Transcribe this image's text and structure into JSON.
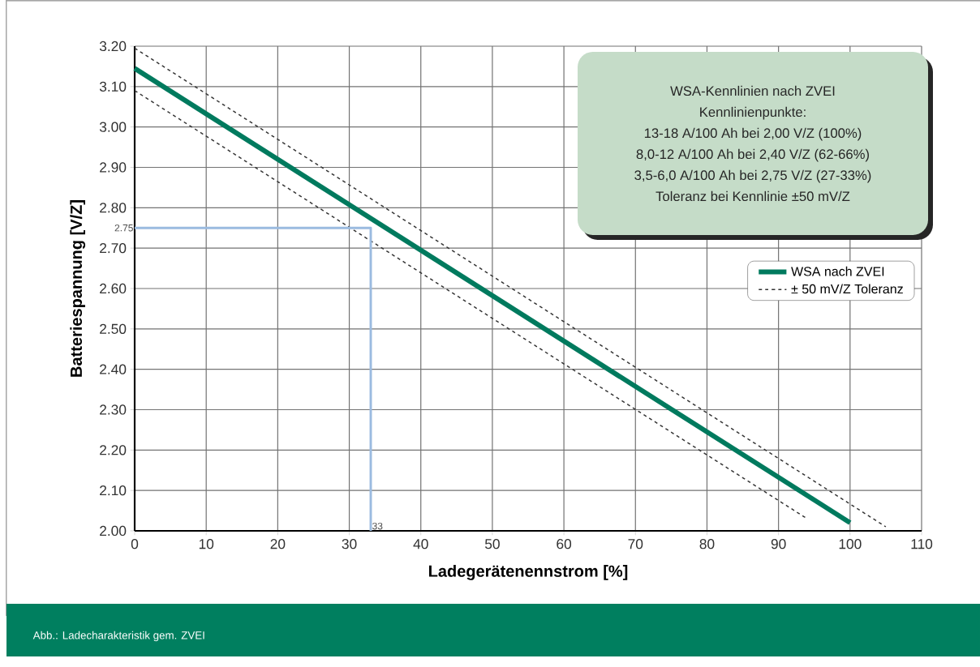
{
  "chart_data": {
    "type": "line",
    "xlabel": "Ladegerätenennstrom [%]",
    "ylabel": "Batteriespannung [V/Z]",
    "xlim": [
      0,
      110
    ],
    "ylim": [
      2.0,
      3.2
    ],
    "xticks": [
      0,
      10,
      20,
      30,
      40,
      50,
      60,
      70,
      80,
      90,
      100,
      110
    ],
    "yticks": [
      {
        "value": 2.0,
        "label": "2.00"
      },
      {
        "value": 2.1,
        "label": "2.10"
      },
      {
        "value": 2.2,
        "label": "2.20"
      },
      {
        "value": 2.3,
        "label": "2.30"
      },
      {
        "value": 2.4,
        "label": "2.40"
      },
      {
        "value": 2.5,
        "label": "2.50"
      },
      {
        "value": 2.6,
        "label": "2.60"
      },
      {
        "value": 2.7,
        "label": "2.70"
      },
      {
        "value": 2.8,
        "label": "2.80"
      },
      {
        "value": 2.9,
        "label": "2.90"
      },
      {
        "value": 3.0,
        "label": "3.00"
      },
      {
        "value": 3.1,
        "label": "3.10"
      },
      {
        "value": 3.2,
        "label": "3.20"
      }
    ],
    "grid": true,
    "legend": "right",
    "series": [
      {
        "name": "WSA nach ZVEI",
        "color": "#007a5e",
        "x": [
          0,
          100
        ],
        "values": [
          3.145,
          2.02
        ]
      },
      {
        "name": "± 50 mV/Z Toleranz",
        "color": "#333333",
        "line_style": "dashed",
        "x": [
          0,
          105
        ],
        "values": [
          3.195,
          2.01
        ]
      },
      {
        "color": "#333333",
        "line_style": "dashed",
        "x": [
          0,
          94
        ],
        "values": [
          3.09,
          2.03
        ]
      },
      {
        "color": "#9bbbe0",
        "x": [
          0,
          33,
          33
        ],
        "values": [
          2.75,
          2.75,
          2.0
        ]
      }
    ],
    "annotations": [
      "WSA-Kennlinien nach ZVEI",
      "Kennlinienpunkte:",
      "13-18 A/100 Ah bei 2,00 V/Z (100%)",
      "8,0-12 A/100 Ah bei 2,40 V/Z (62-66%)",
      "3,5-6,0 A/100 Ah bei 2,75 V/Z (27-33%)",
      "Toleranz bei Kennlinie ±50 mV/Z",
      {
        "text": "2.75",
        "x": 0,
        "y": 2.75
      },
      {
        "text": "33",
        "x": 33,
        "y": 2.0
      },
      "Abb.: Ladecharakteristik gem. ZVEI"
    ]
  }
}
